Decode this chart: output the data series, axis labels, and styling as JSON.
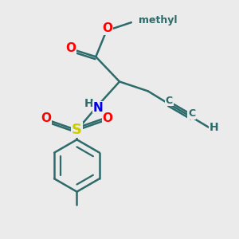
{
  "background_color": "#ebebeb",
  "bond_color": "#2d6b6b",
  "bond_width": 1.8,
  "atom_colors": {
    "O": "#ff0000",
    "N": "#0000ee",
    "S": "#cccc00",
    "C": "#2d6b6b",
    "H": "#2d6b6b"
  },
  "font_size_atoms": 11,
  "font_size_H": 10,
  "font_size_methyl": 9
}
